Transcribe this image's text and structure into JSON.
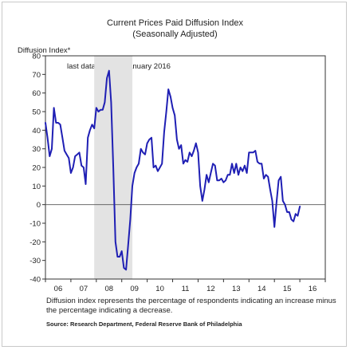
{
  "chart_data": {
    "type": "line",
    "title": "Current Prices Paid Diffusion Index",
    "subtitle": "(Seasonally Adjusted)",
    "ylabel": "Diffusion Index*",
    "xlabel": "",
    "ylim": [
      -40,
      80
    ],
    "yticks": [
      -40,
      -30,
      -20,
      -10,
      0,
      10,
      20,
      30,
      40,
      50,
      60,
      70,
      80
    ],
    "xlim": [
      2006.0,
      2017.0
    ],
    "xtick_labels": [
      "06",
      "07",
      "08",
      "09",
      "10",
      "11",
      "12",
      "13",
      "14",
      "15",
      "16"
    ],
    "annotation": "last data plotted: January 2016",
    "recession": {
      "start": 2007.917,
      "end": 2009.417
    },
    "grid": false,
    "legend": "none",
    "line_color": "#1f1fb4",
    "recession_color": "#e3e3e3",
    "series": [
      {
        "x": [
          2006.0,
          2006.083,
          2006.167,
          2006.25,
          2006.333,
          2006.417,
          2006.5,
          2006.583,
          2006.667,
          2006.75,
          2006.833,
          2006.917,
          2007.0,
          2007.083,
          2007.167,
          2007.25,
          2007.333,
          2007.417,
          2007.5,
          2007.583,
          2007.667,
          2007.75,
          2007.833,
          2007.917,
          2008.0,
          2008.083,
          2008.167,
          2008.25,
          2008.333,
          2008.417,
          2008.5,
          2008.583,
          2008.667,
          2008.75,
          2008.833,
          2008.917,
          2009.0,
          2009.083,
          2009.167,
          2009.25,
          2009.333,
          2009.417,
          2009.5,
          2009.583,
          2009.667,
          2009.75,
          2009.833,
          2009.917,
          2010.0,
          2010.083,
          2010.167,
          2010.25,
          2010.333,
          2010.417,
          2010.5,
          2010.583,
          2010.667,
          2010.75,
          2010.833,
          2010.917,
          2011.0,
          2011.083,
          2011.167,
          2011.25,
          2011.333,
          2011.417,
          2011.5,
          2011.583,
          2011.667,
          2011.75,
          2011.833,
          2011.917,
          2012.0,
          2012.083,
          2012.167,
          2012.25,
          2012.333,
          2012.417,
          2012.5,
          2012.583,
          2012.667,
          2012.75,
          2012.833,
          2012.917,
          2013.0,
          2013.083,
          2013.167,
          2013.25,
          2013.333,
          2013.417,
          2013.5,
          2013.583,
          2013.667,
          2013.75,
          2013.833,
          2013.917,
          2014.0,
          2014.083,
          2014.167,
          2014.25,
          2014.333,
          2014.417,
          2014.5,
          2014.583,
          2014.667,
          2014.75,
          2014.833,
          2014.917,
          2015.0,
          2015.083,
          2015.167,
          2015.25,
          2015.333,
          2015.417,
          2015.5,
          2015.583,
          2015.667,
          2015.75,
          2015.833,
          2015.917,
          2016.0
        ],
        "values": [
          44,
          36,
          26,
          30,
          52,
          44,
          44,
          43,
          36,
          29,
          27,
          25,
          17,
          20,
          26,
          27,
          28,
          21,
          20,
          11,
          36,
          40,
          43,
          41,
          52,
          50,
          51,
          51,
          55,
          68,
          72,
          55,
          20,
          -20,
          -28,
          -28,
          -25,
          -34,
          -35,
          -22,
          -8,
          10,
          17,
          20,
          22,
          30,
          28,
          27,
          33,
          35,
          36,
          20,
          21,
          18,
          20,
          22,
          39,
          50,
          62,
          58,
          52,
          48,
          35,
          30,
          32,
          22,
          24,
          23,
          28,
          26,
          29,
          33,
          28,
          10,
          2,
          8,
          16,
          12,
          17,
          22,
          21,
          13,
          13,
          14,
          12,
          13,
          16,
          16,
          22,
          17,
          22,
          16,
          20,
          18,
          21,
          17,
          28,
          28,
          28,
          29,
          23,
          22,
          22,
          14,
          16,
          15,
          8,
          2,
          -12,
          1,
          13,
          15,
          2,
          0,
          -4,
          -4,
          -8,
          -9,
          -5,
          -6,
          -1
        ]
      }
    ]
  }
}
